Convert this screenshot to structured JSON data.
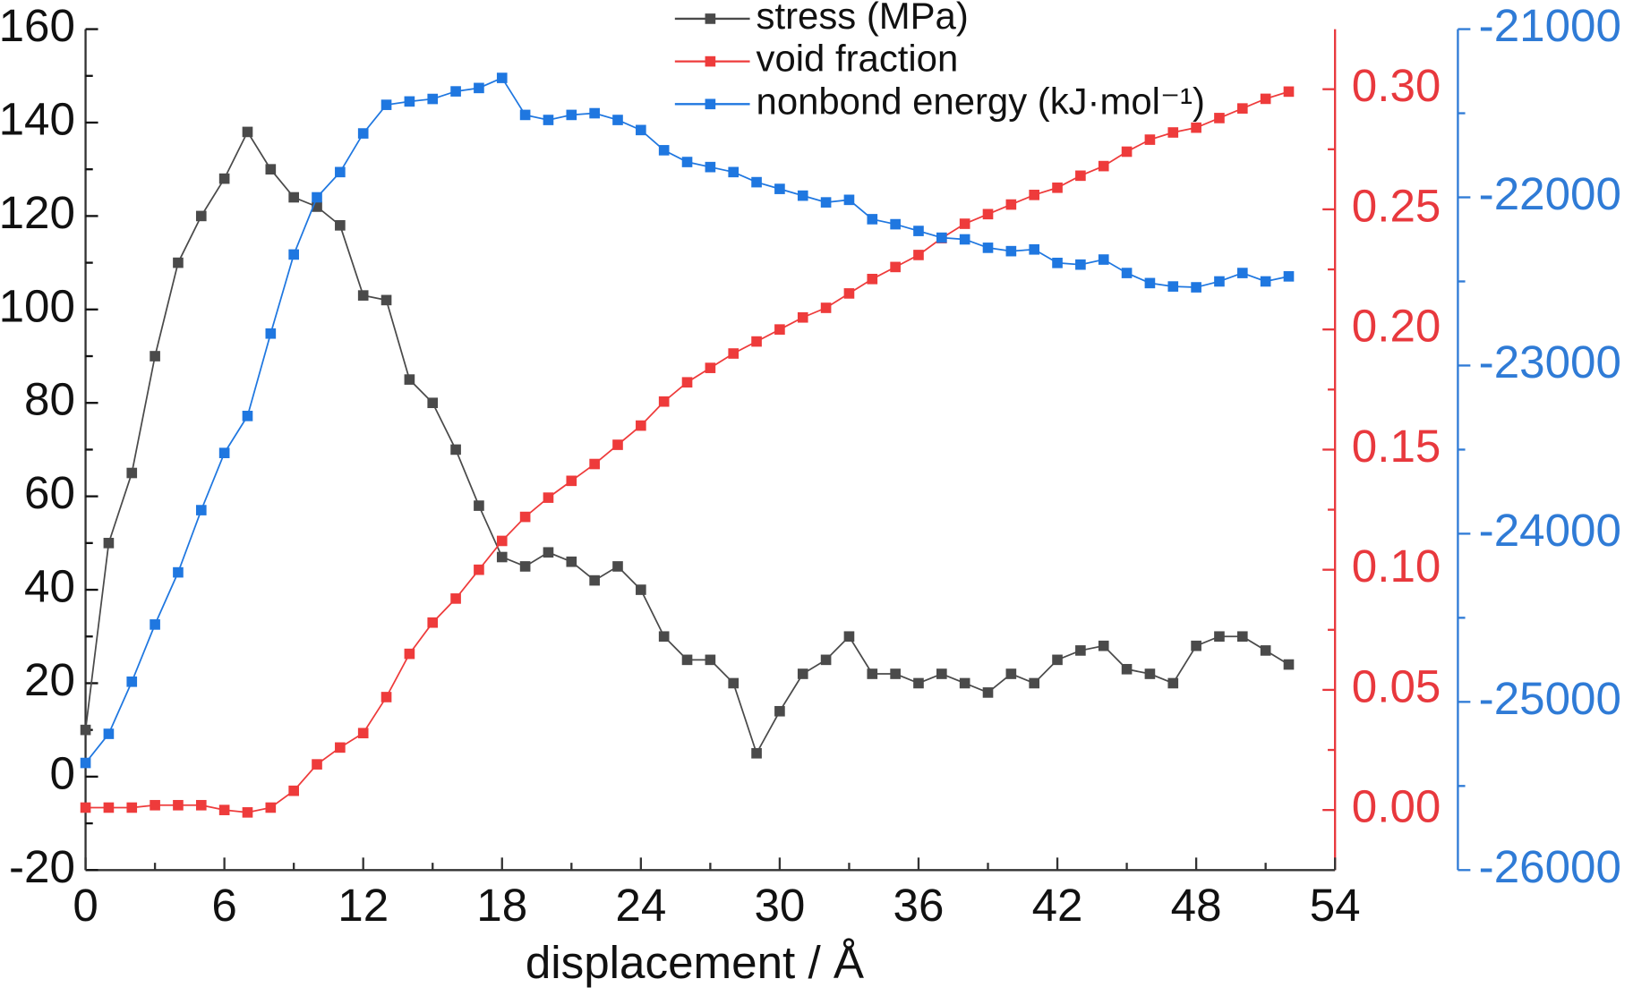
{
  "chart_data": {
    "type": "line",
    "xlabel": "displacement / Å",
    "x": [
      0,
      1,
      2,
      3,
      4,
      5,
      6,
      7,
      8,
      9,
      10,
      11,
      12,
      13,
      14,
      15,
      16,
      17,
      18,
      19,
      20,
      21,
      22,
      23,
      24,
      25,
      26,
      27,
      28,
      29,
      30,
      31,
      32,
      33,
      34,
      35,
      36,
      37,
      38,
      39,
      40,
      41,
      42,
      43,
      44,
      45,
      46,
      47,
      48,
      49,
      50,
      51,
      52
    ],
    "xlim": [
      0,
      54
    ],
    "xticks": [
      0,
      6,
      12,
      18,
      24,
      30,
      36,
      42,
      48,
      54
    ],
    "ylim": [
      -20,
      160
    ],
    "yticks": [
      -20,
      0,
      20,
      40,
      60,
      80,
      100,
      120,
      140,
      160
    ],
    "y2lim": [
      -0.025,
      0.325
    ],
    "y2ticks": [
      {
        "value": 0,
        "label": "0.00"
      },
      {
        "value": 0.05,
        "label": "0.05"
      },
      {
        "value": 0.1,
        "label": "0.10"
      },
      {
        "value": 0.15,
        "label": "0.15"
      },
      {
        "value": 0.2,
        "label": "0.20"
      },
      {
        "value": 0.25,
        "label": "0.25"
      },
      {
        "value": 0.3,
        "label": "0.30"
      }
    ],
    "y3lim": [
      -26000,
      -21000
    ],
    "y3ticks": [
      -26000,
      -25000,
      -24000,
      -23000,
      -22000,
      -21000
    ],
    "series": [
      {
        "name": "stress (MPa)",
        "color": "#4a4a4a",
        "axis": "y",
        "values": [
          10,
          50,
          65,
          90,
          110,
          120,
          128,
          138,
          130,
          124,
          122,
          118,
          103,
          102,
          85,
          80,
          70,
          58,
          47,
          45,
          48,
          46,
          42,
          45,
          40,
          30,
          25,
          25,
          20,
          5,
          14,
          22,
          25,
          30,
          22,
          22,
          20,
          22,
          20,
          18,
          22,
          20,
          25,
          27,
          28,
          23,
          22,
          20,
          28,
          30,
          30,
          27,
          24
        ]
      },
      {
        "name": "void fraction",
        "color": "#ee3b3b",
        "axis": "y2",
        "values": [
          0.001,
          0.001,
          0.001,
          0.002,
          0.002,
          0.002,
          0.0,
          -0.001,
          0.001,
          0.008,
          0.019,
          0.026,
          0.032,
          0.047,
          0.065,
          0.078,
          0.088,
          0.1,
          0.112,
          0.122,
          0.13,
          0.137,
          0.144,
          0.152,
          0.16,
          0.17,
          0.178,
          0.184,
          0.19,
          0.195,
          0.2,
          0.205,
          0.209,
          0.215,
          0.221,
          0.226,
          0.231,
          0.238,
          0.244,
          0.248,
          0.252,
          0.256,
          0.259,
          0.264,
          0.268,
          0.274,
          0.279,
          0.282,
          0.284,
          0.288,
          0.292,
          0.296,
          0.299
        ]
      },
      {
        "name": "nonbond energy (kJ·mol⁻¹)",
        "color": "#1f77e0",
        "axis": "y3",
        "values": [
          -25363,
          -25190,
          -24880,
          -24540,
          -24230,
          -23860,
          -23520,
          -23300,
          -22810,
          -22340,
          -22000,
          -21850,
          -21620,
          -21450,
          -21430,
          -21415,
          -21370,
          -21350,
          -21290,
          -21510,
          -21540,
          -21510,
          -21500,
          -21540,
          -21600,
          -21720,
          -21790,
          -21820,
          -21850,
          -21910,
          -21950,
          -21990,
          -22030,
          -22015,
          -22130,
          -22160,
          -22200,
          -22240,
          -22250,
          -22300,
          -22320,
          -22310,
          -22390,
          -22400,
          -22370,
          -22450,
          -22510,
          -22530,
          -22535,
          -22500,
          -22450,
          -22500,
          -22470
        ]
      }
    ]
  }
}
